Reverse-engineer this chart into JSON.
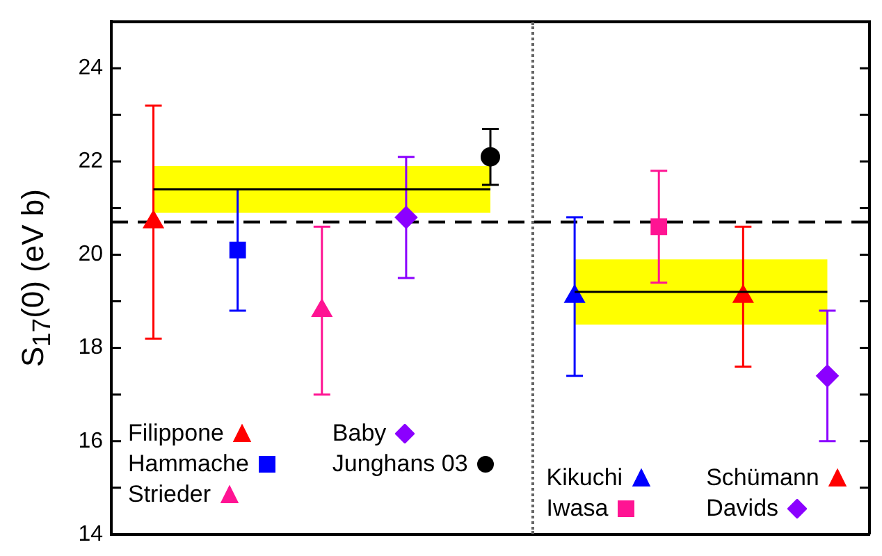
{
  "chart_data": {
    "type": "scatter",
    "ylabel": "S$_{17}$(0) (eV b)",
    "categories": [
      null,
      null,
      null,
      null,
      null,
      null,
      null,
      null,
      null
    ],
    "ylim": [
      14,
      25
    ],
    "yticks": [
      14,
      {
        "value": 15,
        "label": null
      },
      16,
      {
        "value": 17,
        "label": null
      },
      18,
      {
        "value": 19,
        "label": null
      },
      20,
      {
        "value": 21,
        "label": null
      },
      22,
      {
        "value": 23,
        "label": null
      },
      24
    ],
    "tick_labels": "y",
    "legend": "bottom",
    "ref_lines": [
      {
        "axis": "y",
        "value": 20.7,
        "color": "#000000",
        "line_style": "dashed"
      }
    ],
    "series": [
      {
        "type": "line",
        "color": "#000000",
        "marker": "none",
        "values": [
          21.4,
          21.4,
          21.4,
          21.4,
          21.4,
          null,
          null,
          null,
          null
        ],
        "lower": [
          20.9,
          20.9,
          20.9,
          20.9,
          20.9,
          null,
          null,
          null,
          null
        ],
        "upper": [
          21.9,
          21.9,
          21.9,
          21.9,
          21.9,
          null,
          null,
          null,
          null
        ]
      },
      {
        "type": "line",
        "color": "#000000",
        "marker": "none",
        "values": [
          null,
          null,
          null,
          null,
          null,
          19.2,
          19.2,
          19.2,
          19.2
        ],
        "lower": [
          null,
          null,
          null,
          null,
          null,
          18.5,
          18.5,
          18.5,
          18.5
        ],
        "upper": [
          null,
          null,
          null,
          null,
          null,
          19.9,
          19.9,
          19.9,
          19.9
        ]
      },
      {
        "name": "Filippone",
        "color": "#ff0000",
        "marker": "triangle",
        "values": [
          20.7,
          null,
          null,
          null,
          null,
          null,
          null,
          null,
          null
        ],
        "errors": [
          [
            18.2,
            23.2
          ],
          null,
          null,
          null,
          null,
          null,
          null,
          null,
          null
        ]
      },
      {
        "name": "Hammache",
        "color": "#0000ff",
        "marker": "square",
        "values": [
          null,
          20.1,
          null,
          null,
          null,
          null,
          null,
          null,
          null
        ],
        "errors": [
          null,
          [
            18.8,
            21.4
          ],
          null,
          null,
          null,
          null,
          null,
          null,
          null
        ]
      },
      {
        "name": "Strieder",
        "color": "#ff1493",
        "marker": "triangle",
        "values": [
          null,
          null,
          18.8,
          null,
          null,
          null,
          null,
          null,
          null
        ],
        "errors": [
          null,
          null,
          [
            17.0,
            20.6
          ],
          null,
          null,
          null,
          null,
          null,
          null
        ]
      },
      {
        "name": "Baby",
        "color": "#8b00ff",
        "marker": "diamond",
        "values": [
          null,
          null,
          null,
          20.8,
          null,
          null,
          null,
          null,
          null
        ],
        "errors": [
          null,
          null,
          null,
          [
            19.5,
            22.1
          ],
          null,
          null,
          null,
          null,
          null
        ]
      },
      {
        "name": "Junghans 03",
        "color": "#000000",
        "marker": "circle",
        "values": [
          null,
          null,
          null,
          null,
          22.1,
          null,
          null,
          null,
          null
        ],
        "errors": [
          null,
          null,
          null,
          null,
          [
            21.5,
            22.7
          ],
          null,
          null,
          null,
          null
        ]
      },
      {
        "name": "Kikuchi",
        "color": "#0000ff",
        "marker": "triangle",
        "values": [
          null,
          null,
          null,
          null,
          null,
          19.1,
          null,
          null,
          null
        ],
        "errors": [
          null,
          null,
          null,
          null,
          null,
          [
            17.4,
            20.8
          ],
          null,
          null,
          null
        ]
      },
      {
        "name": "Iwasa",
        "color": "#ff1493",
        "marker": "square",
        "values": [
          null,
          null,
          null,
          null,
          null,
          null,
          20.6,
          null,
          null
        ],
        "errors": [
          null,
          null,
          null,
          null,
          null,
          null,
          [
            19.4,
            21.8
          ],
          null,
          null
        ]
      },
      {
        "name": "Schümann",
        "color": "#ff0000",
        "marker": "triangle",
        "values": [
          null,
          null,
          null,
          null,
          null,
          null,
          null,
          19.1,
          null
        ],
        "errors": [
          null,
          null,
          null,
          null,
          null,
          null,
          null,
          [
            17.6,
            20.6
          ],
          null
        ]
      },
      {
        "name": "Davids",
        "color": "#8b00ff",
        "marker": "diamond",
        "values": [
          null,
          null,
          null,
          null,
          null,
          null,
          null,
          null,
          17.4
        ],
        "errors": [
          null,
          null,
          null,
          null,
          null,
          null,
          null,
          null,
          [
            16.0,
            18.8
          ]
        ]
      }
    ]
  }
}
